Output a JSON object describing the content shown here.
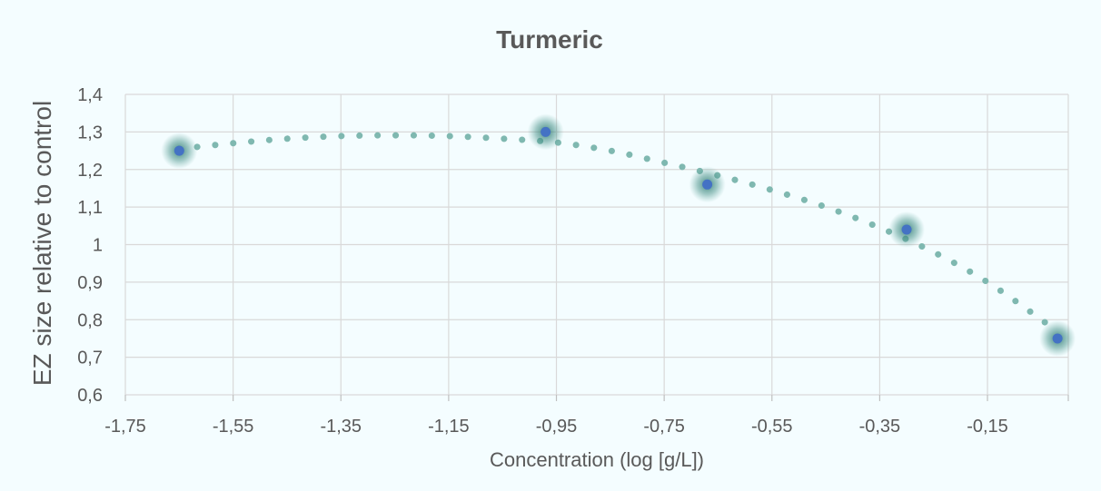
{
  "chart_data": {
    "type": "scatter",
    "title": "Turmeric",
    "xlabel": "Concentration (log  [g/L])",
    "ylabel": "EZ size relative to control",
    "xlim": [
      -1.75,
      0.0
    ],
    "ylim": [
      0.6,
      1.4
    ],
    "x_ticks": [
      -1.75,
      -1.55,
      -1.35,
      -1.15,
      -0.95,
      -0.75,
      -0.55,
      -0.35,
      -0.15
    ],
    "x_tick_labels": [
      "-1,75",
      "-1,55",
      "-1,35",
      "-1,15",
      "-0,95",
      "-0,75",
      "-0,55",
      "-0,35",
      "-0,15"
    ],
    "y_ticks": [
      0.6,
      0.7,
      0.8,
      0.9,
      1.0,
      1.1,
      1.2,
      1.3,
      1.4
    ],
    "y_tick_labels": [
      "0,6",
      "0,7",
      "0,8",
      "0,9",
      "1",
      "1,1",
      "1,2",
      "1,3",
      "1,4"
    ],
    "grid": true,
    "legend": "none",
    "series": [
      {
        "x": [
          -1.65,
          -0.97,
          -0.67,
          -0.3,
          -0.02
        ],
        "y": [
          1.25,
          1.3,
          1.16,
          1.04,
          0.75
        ],
        "color": "#4472c4",
        "glow_color": "#2e6f67"
      }
    ],
    "trendline": {
      "style": "dotted",
      "color": "#7fb8b0",
      "x": [
        -1.65,
        -1.55,
        -1.45,
        -1.35,
        -1.25,
        -1.15,
        -1.05,
        -0.95,
        -0.85,
        -0.75,
        -0.65,
        -0.55,
        -0.45,
        -0.35,
        -0.25,
        -0.15,
        -0.05,
        -0.02
      ],
      "y": [
        1.255,
        1.27,
        1.282,
        1.289,
        1.291,
        1.289,
        1.282,
        1.272,
        1.25,
        1.218,
        1.184,
        1.145,
        1.1,
        1.045,
        0.98,
        0.9,
        0.8,
        0.765
      ]
    }
  }
}
